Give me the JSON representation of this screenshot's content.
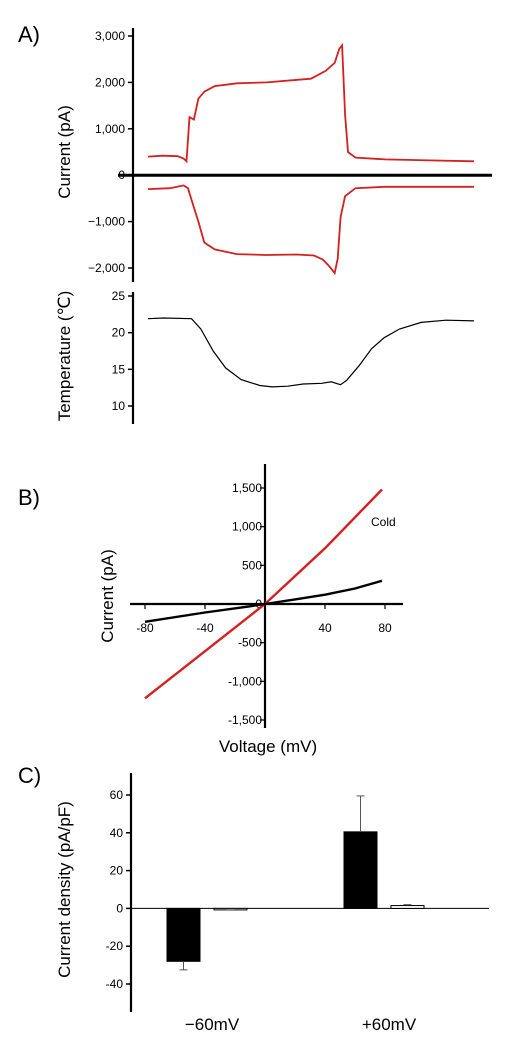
{
  "panels": {
    "a_label": "A)",
    "b_label": "B)",
    "c_label": "C)"
  },
  "colors": {
    "red": "#d42020",
    "black": "#000000",
    "bar_fill": "#000000",
    "bar_open": "#ffffff"
  },
  "chart_data": [
    {
      "type": "line",
      "panel": "A (top)",
      "ylabel": "Current (pA)",
      "ylim": [
        -2300,
        3100
      ],
      "ytick_labels": [
        "3,000",
        "2,000",
        "1,000",
        "0",
        "−1,000",
        "−2,000"
      ],
      "yticks": [
        3000,
        2000,
        1000,
        0,
        -1000,
        -2000
      ],
      "series": [
        {
          "color": "#d42020",
          "points": [
            [
              0,
              400
            ],
            [
              10,
              420
            ],
            [
              20,
              410
            ],
            [
              24,
              360
            ],
            [
              26,
              300
            ],
            [
              28,
              1250
            ],
            [
              31,
              1200
            ],
            [
              34,
              1650
            ],
            [
              38,
              1800
            ],
            [
              45,
              1920
            ],
            [
              60,
              1980
            ],
            [
              80,
              2000
            ],
            [
              110,
              2080
            ],
            [
              120,
              2250
            ],
            [
              126,
              2420
            ],
            [
              129,
              2720
            ],
            [
              131,
              2800
            ],
            [
              133,
              1300
            ],
            [
              135,
              500
            ],
            [
              140,
              380
            ],
            [
              160,
              340
            ],
            [
              190,
              320
            ],
            [
              220,
              300
            ]
          ]
        },
        {
          "color": "#d42020",
          "points": [
            [
              0,
              -300
            ],
            [
              15,
              -280
            ],
            [
              24,
              -220
            ],
            [
              27,
              -280
            ],
            [
              30,
              -600
            ],
            [
              34,
              -1000
            ],
            [
              38,
              -1450
            ],
            [
              45,
              -1600
            ],
            [
              60,
              -1700
            ],
            [
              80,
              -1720
            ],
            [
              100,
              -1710
            ],
            [
              112,
              -1730
            ],
            [
              118,
              -1820
            ],
            [
              122,
              -1950
            ],
            [
              126,
              -2110
            ],
            [
              128,
              -1800
            ],
            [
              130,
              -900
            ],
            [
              133,
              -450
            ],
            [
              140,
              -280
            ],
            [
              160,
              -250
            ],
            [
              190,
              -250
            ],
            [
              220,
              -250
            ]
          ]
        }
      ]
    },
    {
      "type": "line",
      "panel": "A (bottom)",
      "ylabel": "Temperature (℃)",
      "ylim": [
        9,
        25
      ],
      "yticks": [
        25,
        20,
        15,
        10
      ],
      "ytick_labels": [
        "25",
        "20",
        "15",
        "10"
      ],
      "series": [
        {
          "color": "#000000",
          "points": [
            [
              0,
              21.9
            ],
            [
              10,
              22
            ],
            [
              28,
              21.9
            ],
            [
              34,
              20.5
            ],
            [
              42,
              17.5
            ],
            [
              50,
              15.2
            ],
            [
              60,
              13.6
            ],
            [
              72,
              12.8
            ],
            [
              80,
              12.6
            ],
            [
              90,
              12.7
            ],
            [
              100,
              13.0
            ],
            [
              112,
              13.1
            ],
            [
              118,
              13.3
            ],
            [
              124,
              12.9
            ],
            [
              128,
              13.5
            ],
            [
              136,
              15.5
            ],
            [
              144,
              17.8
            ],
            [
              152,
              19.3
            ],
            [
              162,
              20.5
            ],
            [
              176,
              21.4
            ],
            [
              192,
              21.7
            ],
            [
              210,
              21.6
            ]
          ]
        }
      ]
    },
    {
      "type": "line",
      "panel": "B",
      "xlabel": "Voltage (mV)",
      "ylabel": "Current (pA)",
      "xlim": [
        -90,
        90
      ],
      "ylim": [
        -1500,
        1700
      ],
      "xticks": [
        -80,
        -40,
        40,
        80
      ],
      "xtick_labels": [
        "-80",
        "-40",
        "40",
        "80"
      ],
      "yticks": [
        1500,
        1000,
        500,
        0,
        -500,
        -1000,
        -1500
      ],
      "ytick_labels": [
        "1,500",
        "1,000",
        "500",
        "0",
        "-500",
        "-1,000",
        "-1,500"
      ],
      "annotation": "Cold",
      "series": [
        {
          "color": "#d42020",
          "points": [
            [
              -80,
              -1220
            ],
            [
              -40,
              -610
            ],
            [
              0,
              0
            ],
            [
              40,
              720
            ],
            [
              78,
              1480
            ]
          ]
        },
        {
          "color": "#000000",
          "points": [
            [
              -80,
              -230
            ],
            [
              -40,
              -110
            ],
            [
              -10,
              -30
            ],
            [
              0,
              0
            ],
            [
              20,
              60
            ],
            [
              40,
              120
            ],
            [
              60,
              200
            ],
            [
              78,
              300
            ]
          ]
        }
      ]
    },
    {
      "type": "bar",
      "panel": "C",
      "ylabel": "Current density (pA/pF)",
      "categories": [
        "−60mV",
        "+60mV"
      ],
      "ylim": [
        -48,
        70
      ],
      "yticks": [
        60,
        40,
        20,
        0,
        -20,
        -40
      ],
      "ytick_labels": [
        "60",
        "40",
        "20",
        "0",
        "-20",
        "-40"
      ],
      "series": [
        {
          "fill": "#000000",
          "values": [
            -28,
            40.5
          ],
          "errors": [
            4.5,
            19
          ]
        },
        {
          "fill": "#ffffff",
          "values": [
            -0.5,
            1.5
          ],
          "errors": [
            0.4,
            0.5
          ]
        }
      ]
    }
  ]
}
